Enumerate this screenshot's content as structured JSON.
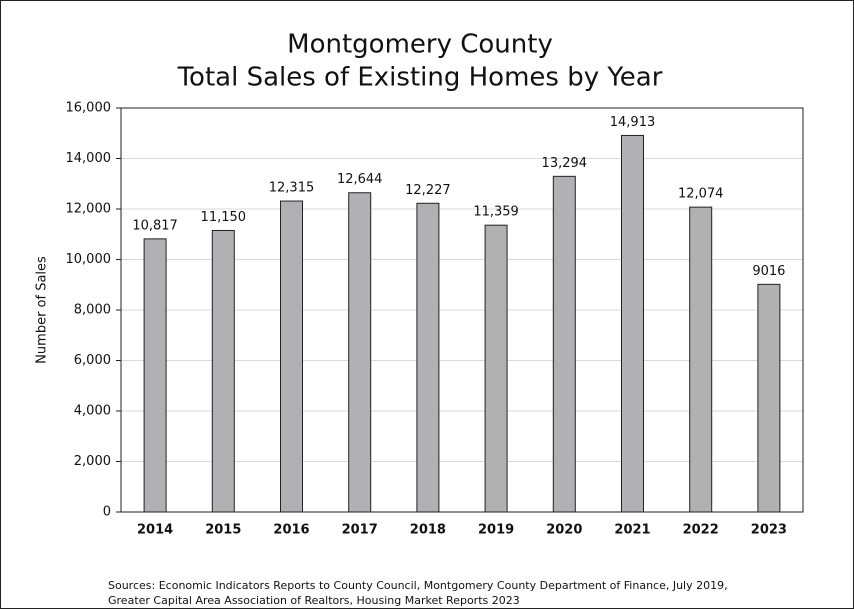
{
  "chart_data": {
    "type": "bar",
    "title": [
      "Montgomery County",
      "Total Sales of Existing Homes by Year"
    ],
    "y_label": "Number of Sales",
    "categories": [
      "2014",
      "2015",
      "2016",
      "2017",
      "2018",
      "2019",
      "2020",
      "2021",
      "2022",
      "2023"
    ],
    "values": [
      10817,
      11150,
      12315,
      12644,
      12227,
      11359,
      13294,
      14913,
      12074,
      9016
    ],
    "value_labels": [
      "10,817",
      "11,150",
      "12,315",
      "12,644",
      "12,227",
      "11,359",
      "13,294",
      "14,913",
      "12,074",
      "9016"
    ],
    "color": "#b1b1b4",
    "ylim": [
      0,
      16000
    ],
    "yticks": [
      0,
      {
        "value": 2000,
        "label": "2,000"
      },
      {
        "value": 4000,
        "label": "4,000"
      },
      {
        "value": 6000,
        "label": "6,000"
      },
      {
        "value": 8000,
        "label": "8,000"
      },
      {
        "value": 10000,
        "label": "10,000"
      },
      {
        "value": 12000,
        "label": "12,000"
      },
      {
        "value": 14000,
        "label": "14,000"
      },
      {
        "value": 16000,
        "label": "16,000"
      }
    ],
    "grid": true,
    "source": [
      "Sources: Economic Indicators Reports to County Council, Montgomery County Department of Finance, July 2019,",
      "Greater Capital Area Association of Realtors, Housing Market Reports 2023"
    ]
  }
}
